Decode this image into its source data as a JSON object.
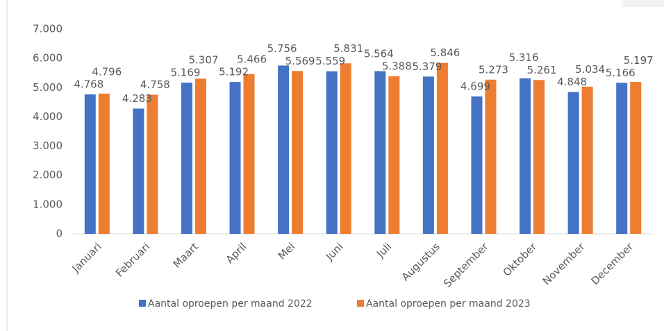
{
  "chart_data": {
    "type": "bar",
    "categories": [
      "Januari",
      "Februari",
      "Maart",
      "April",
      "Mei",
      "Juni",
      "Juli",
      "Augustus",
      "September",
      "Oktober",
      "November",
      "December"
    ],
    "series": [
      {
        "name": "Aantal oproepen per maand 2022",
        "color": "#4472c4",
        "values": [
          4768,
          4283,
          5169,
          5192,
          5756,
          5559,
          5564,
          5379,
          4699,
          5316,
          4848,
          5166
        ],
        "value_labels": [
          "4.768",
          "4.283",
          "5.169",
          "5.192",
          "5.756",
          "5.559",
          "5.564",
          "5.379",
          "4.699",
          "5.316",
          "4.848",
          "5.166"
        ]
      },
      {
        "name": "Aantal oproepen per maand 2023",
        "color": "#ed7d31",
        "values": [
          4796,
          4758,
          5307,
          5466,
          5569,
          5831,
          5388,
          5846,
          5273,
          5261,
          5034,
          5197
        ],
        "value_labels": [
          "4.796",
          "4.758",
          "5.307",
          "5.466",
          "5.569",
          "5.831",
          "5.388",
          "5.846",
          "5.273",
          "5.261",
          "5.034",
          "5.197"
        ]
      }
    ],
    "ylim": [
      0,
      7000
    ],
    "yticks": [
      0,
      {
        "value": 1000,
        "label": "1.000"
      },
      {
        "value": 2000,
        "label": "2.000"
      },
      {
        "value": 3000,
        "label": "3.000"
      },
      {
        "value": 4000,
        "label": "4.000"
      },
      {
        "value": 5000,
        "label": "5.000"
      },
      {
        "value": 6000,
        "label": "6.000"
      },
      {
        "value": 7000,
        "label": "7.000"
      }
    ],
    "legend": "bottom"
  }
}
